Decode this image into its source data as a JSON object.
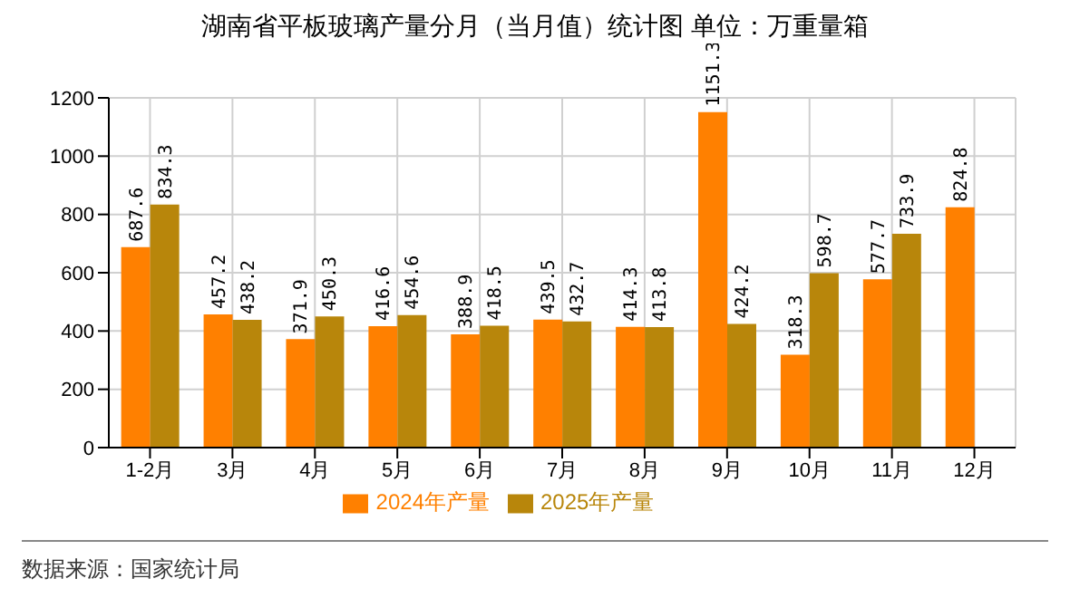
{
  "chart_data": {
    "type": "bar",
    "title": "湖南省平板玻璃产量分月（当月值）统计图 单位：万重量箱",
    "categories": [
      "1-2月",
      "3月",
      "4月",
      "5月",
      "6月",
      "7月",
      "8月",
      "9月",
      "10月",
      "11月",
      "12月"
    ],
    "series": [
      {
        "name": "2024年产量",
        "color": "#ff8000",
        "values": [
          687.6,
          457.2,
          371.9,
          416.6,
          388.9,
          439.5,
          414.3,
          1151.3,
          318.3,
          577.7,
          824.8
        ]
      },
      {
        "name": "2025年产量",
        "color": "#b8860b",
        "values": [
          834.3,
          438.2,
          450.3,
          454.6,
          418.5,
          432.7,
          413.8,
          424.2,
          598.7,
          733.9,
          null
        ]
      }
    ],
    "ylim": [
      0,
      1200
    ],
    "yticks": [
      0,
      200,
      400,
      600,
      800,
      1000,
      1200
    ],
    "grid": true,
    "legend": "bottom",
    "data_labels": true,
    "annotations": [
      "数据来源：国家统计局"
    ]
  }
}
